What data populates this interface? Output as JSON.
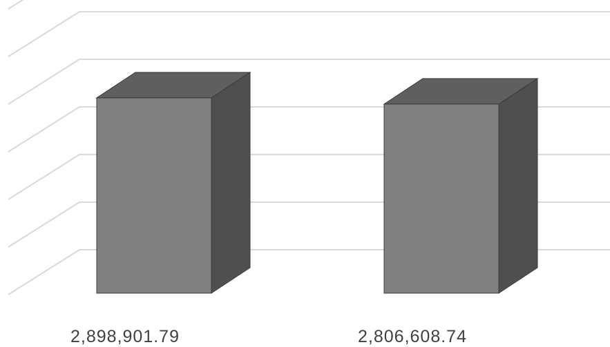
{
  "chart_data": {
    "type": "bar",
    "style": "3d-column",
    "categories": [
      "2,898,901.79",
      "2,806,608.74"
    ],
    "values": [
      2898901.79,
      2806608.74
    ],
    "ylim": [
      0,
      3400000
    ],
    "grid": true,
    "title": "",
    "xlabel": "",
    "ylabel": "",
    "colors": {
      "front": "#808080",
      "side": "#4f4f4f",
      "top": "#5f5f5f",
      "grid": "#d9d9d9",
      "label": "#404040"
    }
  }
}
